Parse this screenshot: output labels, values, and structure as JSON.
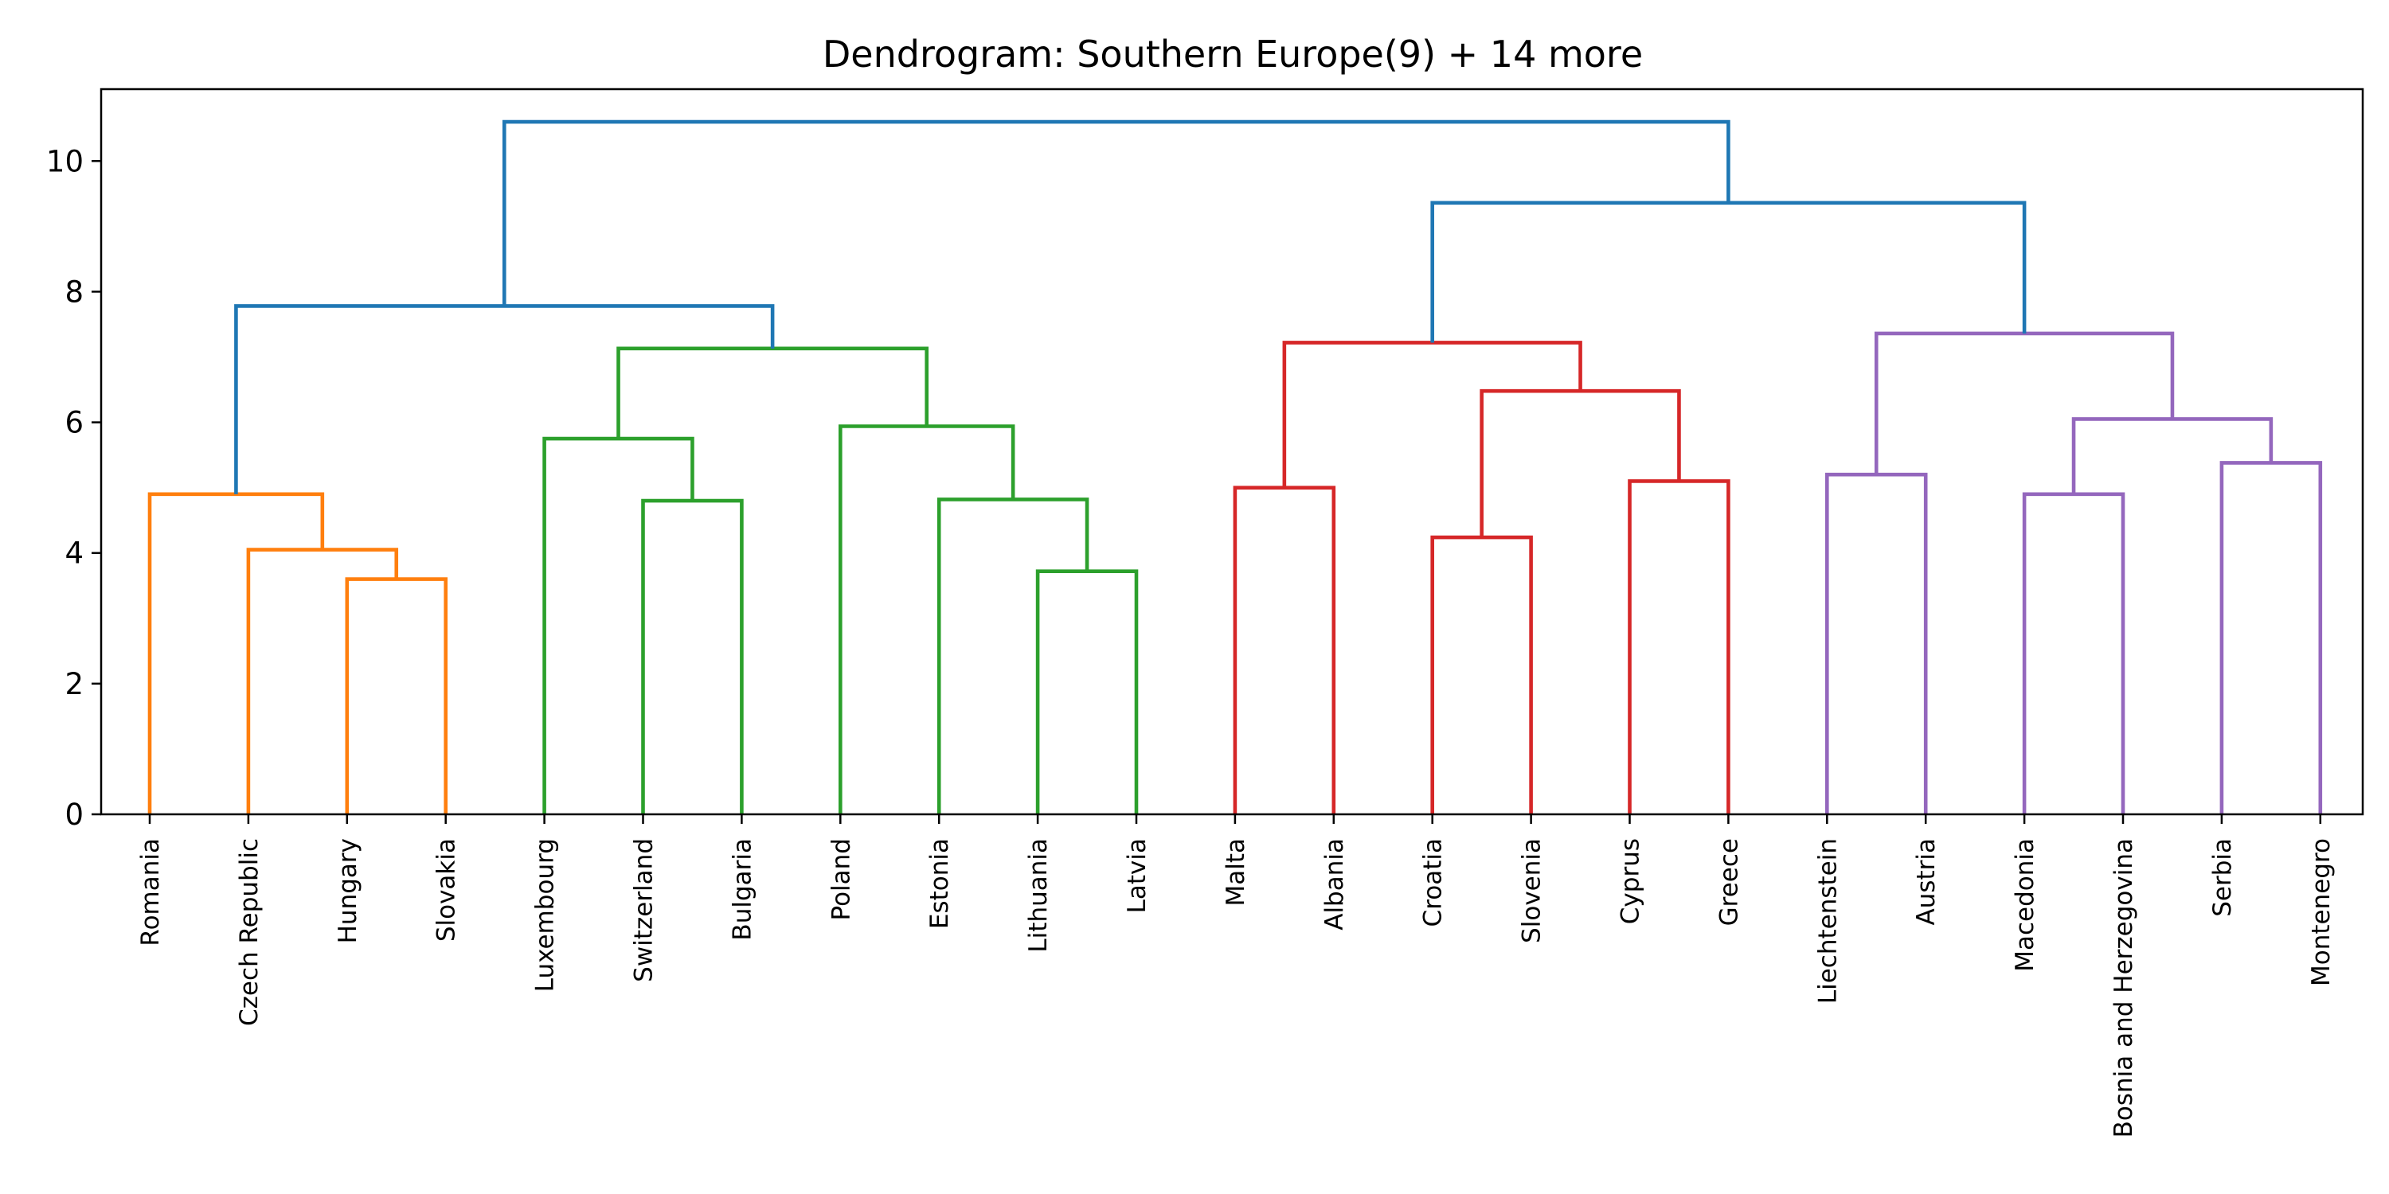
{
  "chart_data": {
    "type": "dendrogram",
    "title": "Dendrogram: Southern Europe(9) + 14 more",
    "xlabel": "",
    "ylabel": "",
    "ylim": [
      0,
      11.1
    ],
    "yticks": [
      0,
      2,
      4,
      6,
      8,
      10
    ],
    "grid": false,
    "leaves": [
      "Romania",
      "Czech Republic",
      "Hungary",
      "Slovakia",
      "Luxembourg",
      "Switzerland",
      "Bulgaria",
      "Poland",
      "Estonia",
      "Lithuania",
      "Latvia",
      "Malta",
      "Albania",
      "Croatia",
      "Slovenia",
      "Cyprus",
      "Greece",
      "Liechtenstein",
      "Austria",
      "Macedonia",
      "Bosnia and Herzegovina",
      "Serbia",
      "Montenegro"
    ],
    "colors": {
      "above": "#1f77b4",
      "cluster_1": "#ff7f0e",
      "cluster_2": "#2ca02c",
      "cluster_3": "#d62728",
      "cluster_4": "#9467bd",
      "axis": "#000000"
    },
    "merges": [
      {
        "left": "Hungary",
        "right": "Slovakia",
        "height": 3.6,
        "color": "cluster_1"
      },
      {
        "left": "Czech Republic",
        "right": "Hungary+Slovakia",
        "height": 4.05,
        "color": "cluster_1"
      },
      {
        "left": "Romania",
        "right": "Czech Republic+Hungary+Slovakia",
        "height": 4.9,
        "color": "cluster_1"
      },
      {
        "left": "Switzerland",
        "right": "Bulgaria",
        "height": 4.8,
        "color": "cluster_2"
      },
      {
        "left": "Luxembourg",
        "right": "Switzerland+Bulgaria",
        "height": 5.75,
        "color": "cluster_2"
      },
      {
        "left": "Lithuania",
        "right": "Latvia",
        "height": 3.72,
        "color": "cluster_2"
      },
      {
        "left": "Estonia",
        "right": "Lithuania+Latvia",
        "height": 4.82,
        "color": "cluster_2"
      },
      {
        "left": "Poland",
        "right": "Estonia+Lithuania+Latvia",
        "height": 5.94,
        "color": "cluster_2"
      },
      {
        "left": "Luxembourg+Switzerland+Bulgaria",
        "right": "Poland+Estonia+Lithuania+Latvia",
        "height": 7.13,
        "color": "cluster_2"
      },
      {
        "left": "Romania group",
        "right": "Luxembourg-Latvia group",
        "height": 7.78,
        "color": "above"
      },
      {
        "left": "Malta",
        "right": "Albania",
        "height": 5.0,
        "color": "cluster_3"
      },
      {
        "left": "Croatia",
        "right": "Slovenia",
        "height": 4.24,
        "color": "cluster_3"
      },
      {
        "left": "Cyprus",
        "right": "Greece",
        "height": 5.1,
        "color": "cluster_3"
      },
      {
        "left": "Croatia+Slovenia",
        "right": "Cyprus+Greece",
        "height": 6.48,
        "color": "cluster_3"
      },
      {
        "left": "Malta+Albania",
        "right": "Croatia+Slovenia+Cyprus+Greece",
        "height": 7.22,
        "color": "cluster_3"
      },
      {
        "left": "Liechtenstein",
        "right": "Austria",
        "height": 5.2,
        "color": "cluster_4"
      },
      {
        "left": "Macedonia",
        "right": "Bosnia and Herzegovina",
        "height": 4.9,
        "color": "cluster_4"
      },
      {
        "left": "Serbia",
        "right": "Montenegro",
        "height": 5.38,
        "color": "cluster_4"
      },
      {
        "left": "Macedonia+Bosnia and Herzegovina",
        "right": "Serbia+Montenegro",
        "height": 6.05,
        "color": "cluster_4"
      },
      {
        "left": "Liechtenstein+Austria",
        "right": "Macedonia-Montenegro group",
        "height": 7.36,
        "color": "cluster_4"
      },
      {
        "left": "Malta-Greece group",
        "right": "Liechtenstein-Montenegro group",
        "height": 9.36,
        "color": "above"
      },
      {
        "left": "Romania-Latvia group",
        "right": "Malta-Montenegro group",
        "height": 10.6,
        "color": "above"
      }
    ]
  }
}
